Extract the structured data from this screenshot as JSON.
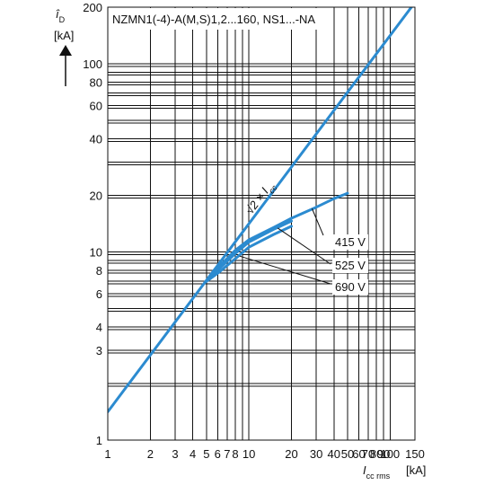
{
  "chart_data": {
    "type": "line",
    "title": "NZMN1(-4)-A(M,S)1,2...160, NS1...-NA",
    "xscale": "log",
    "yscale": "log",
    "xlim": [
      1,
      150
    ],
    "ylim": [
      1,
      200
    ],
    "grid": true,
    "x_ticks": [
      1,
      2,
      3,
      4,
      5,
      6,
      7,
      8,
      9,
      10,
      20,
      30,
      40,
      50,
      60,
      70,
      80,
      90,
      100,
      150
    ],
    "x_tick_labels": [
      "1",
      "2",
      "3",
      "4",
      "5",
      "6",
      "7",
      "8",
      "",
      "10",
      "20",
      "30",
      "40",
      "50",
      "60",
      "70",
      "80",
      "90",
      "100",
      "150"
    ],
    "y_ticks": [
      1,
      2,
      3,
      4,
      5,
      6,
      7,
      8,
      9,
      10,
      20,
      30,
      40,
      50,
      60,
      70,
      80,
      90,
      100,
      200
    ],
    "y_tick_labels": [
      "1",
      "",
      "3",
      "4",
      "",
      "6",
      "",
      "8",
      "",
      "10",
      "20",
      "",
      "40",
      "",
      "60",
      "",
      "80",
      "",
      "100",
      "200"
    ],
    "ylabel_symbol": "î",
    "ylabel_sub": "D",
    "ylabel_unit": "[kA]",
    "xlabel_symbol": "I",
    "xlabel_sub": "cc rms",
    "xlabel_unit": "[kA]",
    "series": [
      {
        "name": "√2 × Icc",
        "x": [
          1,
          150
        ],
        "y": [
          1.414,
          212.1
        ]
      },
      {
        "name": "415 V",
        "x": [
          4.9,
          6,
          8,
          10,
          15,
          20,
          30,
          40,
          50
        ],
        "y": [
          6.9,
          8.2,
          10.2,
          11.6,
          13.5,
          15.1,
          17.3,
          19.2,
          20.5
        ]
      },
      {
        "name": "525 V",
        "x": [
          4.9,
          6,
          8,
          10,
          15,
          20
        ],
        "y": [
          6.9,
          8.0,
          9.8,
          11.3,
          13.2,
          14.6
        ]
      },
      {
        "name": "690 V",
        "x": [
          4.9,
          6,
          8,
          10,
          15,
          20
        ],
        "y": [
          6.9,
          7.7,
          9.2,
          10.6,
          12.4,
          13.7
        ]
      }
    ],
    "annotations": [
      {
        "text": "√2 × I",
        "sub": "cc",
        "kind": "diagonal-label"
      },
      {
        "text": "415 V",
        "points_to_series": "415 V"
      },
      {
        "text": "525 V",
        "points_to_series": "525 V"
      },
      {
        "text": "690 V",
        "points_to_series": "690 V"
      }
    ],
    "colors": {
      "curve": "#2c8bd0",
      "grid": "#111111"
    }
  }
}
